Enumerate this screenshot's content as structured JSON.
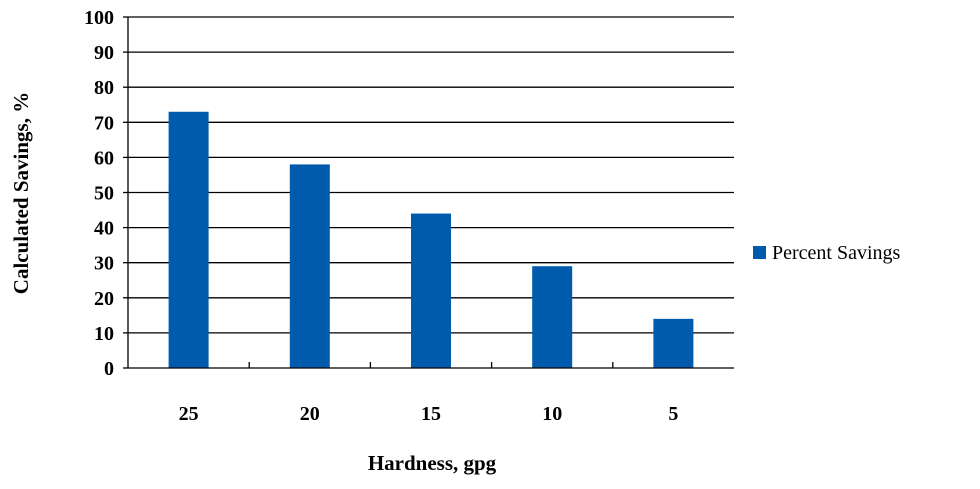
{
  "chart_data": {
    "type": "bar",
    "categories": [
      "25",
      "20",
      "15",
      "10",
      "5"
    ],
    "series": [
      {
        "name": "Percent Savings",
        "values": [
          73,
          58,
          44,
          29,
          14
        ],
        "color": "#005BAC"
      }
    ],
    "title": "",
    "xlabel": "Hardness, gpg",
    "ylabel": "Calculated Savings, %",
    "ylim": [
      0,
      100
    ],
    "yticks": [
      0,
      10,
      20,
      30,
      40,
      50,
      60,
      70,
      80,
      90,
      100
    ],
    "grid": true,
    "legend_position": "right"
  }
}
